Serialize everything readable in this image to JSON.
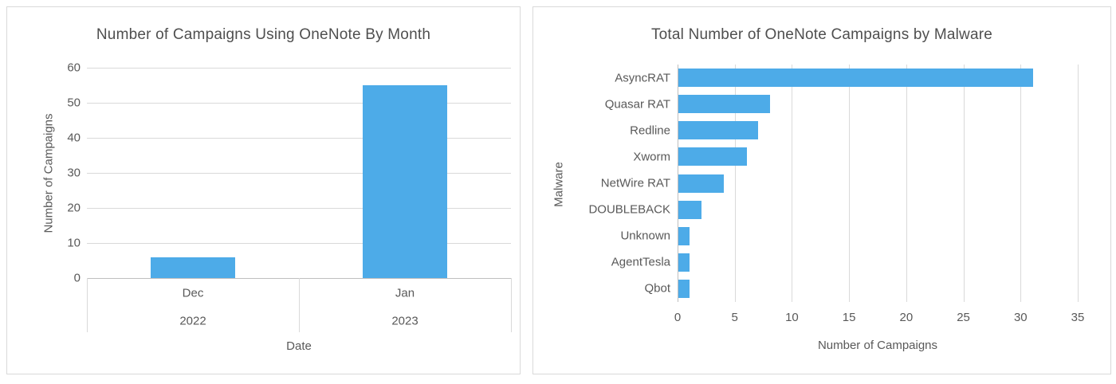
{
  "colors": {
    "bar_blue": "#4dabe8",
    "gridline": "#d9d9d9",
    "axis_line": "#bfbfbf",
    "text": "#595959",
    "panel_border": "#d9d9d9",
    "background": "#ffffff"
  },
  "chart_data": [
    {
      "type": "bar",
      "title": "Number of Campaigns Using OneNote By Month",
      "xlabel": "Date",
      "ylabel": "Number of Campaigns",
      "categories": [
        "Dec",
        "Jan"
      ],
      "category_groups": [
        "2022",
        "2023"
      ],
      "values": [
        6,
        55
      ],
      "ylim": [
        0,
        60
      ],
      "yticks": [
        0,
        10,
        20,
        30,
        40,
        50,
        60
      ],
      "grid": true,
      "legend": "none",
      "bar_color": "#4dabe8"
    },
    {
      "type": "bar-horizontal",
      "title": "Total Number of OneNote Campaigns by Malware",
      "xlabel": "Number of Campaigns",
      "ylabel": "Malware",
      "categories": [
        "AsyncRAT",
        "Quasar RAT",
        "Redline",
        "Xworm",
        "NetWire RAT",
        "DOUBLEBACK",
        "Unknown",
        "AgentTesla",
        "Qbot"
      ],
      "values": [
        31,
        8,
        7,
        6,
        4,
        2,
        1,
        1,
        1
      ],
      "xlim": [
        0,
        35
      ],
      "xticks": [
        0,
        5,
        10,
        15,
        20,
        25,
        30,
        35
      ],
      "grid": true,
      "legend": "none",
      "bar_color": "#4dabe8"
    }
  ]
}
